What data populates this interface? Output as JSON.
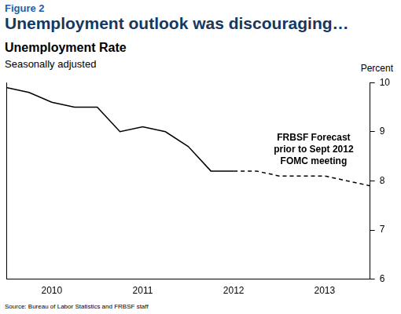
{
  "chart_data": {
    "type": "line",
    "figure_label": "Figure 2",
    "title": "Unemployment outlook was discouraging…",
    "subtitle": "Unemployment Rate",
    "note": "Seasonally adjusted",
    "y_label": "Percent",
    "source": "Source: Bureau of Labor Statistics and FRBSF staff",
    "annotation": [
      "FRBSF Forecast",
      "prior to Sept 2012",
      "FOMC meeting"
    ],
    "categories": [
      null,
      null,
      "2010",
      null,
      null,
      null,
      "2011",
      null,
      null,
      null,
      "2012",
      null,
      null,
      null,
      "2013",
      null,
      null
    ],
    "series": [
      {
        "color": "#000000",
        "line_style": "solid",
        "marker": "none",
        "values": [
          9.9,
          9.8,
          9.6,
          9.5,
          9.5,
          9.0,
          9.1,
          9.0,
          8.7,
          8.2,
          8.2,
          null,
          null,
          null,
          null,
          null,
          null
        ]
      },
      {
        "color": "#000000",
        "line_style": "dashed",
        "marker": "none",
        "values": [
          null,
          null,
          null,
          null,
          null,
          null,
          null,
          null,
          null,
          null,
          8.2,
          8.2,
          8.1,
          8.1,
          8.1,
          8.0,
          7.9
        ]
      }
    ],
    "ylim": [
      6,
      10
    ],
    "yticks": [
      6,
      7,
      8,
      9,
      10
    ],
    "grid": false
  }
}
